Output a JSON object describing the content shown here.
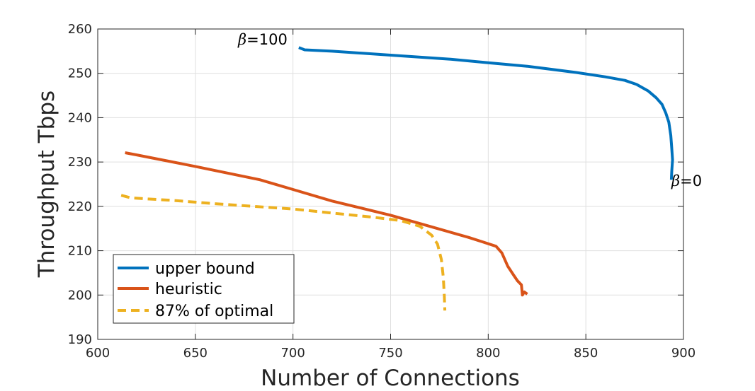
{
  "chart_data": {
    "type": "line",
    "xlabel": "Number of Connections",
    "ylabel": "Throughput Tbps",
    "xlim": [
      600,
      900
    ],
    "ylim": [
      190,
      260
    ],
    "xticks": [
      "600",
      "650",
      "700",
      "750",
      "800",
      "850",
      "900"
    ],
    "yticks": [
      "190",
      "200",
      "210",
      "220",
      "230",
      "240",
      "250",
      "260"
    ],
    "grid": true,
    "legend_position": "bottom-left",
    "series": [
      {
        "name": "upper bound",
        "color": "#0072BD",
        "style": "solid",
        "points": [
          [
            703,
            255.8
          ],
          [
            706,
            255.3
          ],
          [
            720,
            255.0
          ],
          [
            750,
            254.1
          ],
          [
            780,
            253.2
          ],
          [
            800,
            252.4
          ],
          [
            820,
            251.6
          ],
          [
            845,
            250.2
          ],
          [
            860,
            249.2
          ],
          [
            870,
            248.4
          ],
          [
            876,
            247.5
          ],
          [
            882,
            246.0
          ],
          [
            886,
            244.5
          ],
          [
            889,
            243.0
          ],
          [
            891,
            241.0
          ],
          [
            892.5,
            239.0
          ],
          [
            893.5,
            236.0
          ],
          [
            894,
            233.0
          ],
          [
            894.4,
            230.5
          ],
          [
            894,
            228.0
          ],
          [
            893.8,
            226.0
          ]
        ]
      },
      {
        "name": "heuristic",
        "color": "#D95319",
        "style": "solid",
        "points": [
          [
            614,
            232.1
          ],
          [
            620,
            231.6
          ],
          [
            650,
            229.0
          ],
          [
            683,
            226.0
          ],
          [
            700,
            223.8
          ],
          [
            720,
            221.2
          ],
          [
            750,
            218.0
          ],
          [
            770,
            215.5
          ],
          [
            790,
            213.0
          ],
          [
            797,
            212.0
          ],
          [
            804,
            211.0
          ],
          [
            807,
            209.5
          ],
          [
            810,
            206.5
          ],
          [
            813,
            204.5
          ],
          [
            815,
            203.2
          ],
          [
            817,
            202.3
          ],
          [
            817.5,
            200.0
          ],
          [
            818.5,
            200.7
          ],
          [
            820,
            200.2
          ]
        ]
      },
      {
        "name": "87% of optimal",
        "color": "#EDB120",
        "style": "dashed",
        "points": [
          [
            612,
            222.5
          ],
          [
            617,
            221.9
          ],
          [
            640,
            221.3
          ],
          [
            660,
            220.6
          ],
          [
            680,
            220.0
          ],
          [
            700,
            219.4
          ],
          [
            720,
            218.5
          ],
          [
            740,
            217.6
          ],
          [
            755,
            216.8
          ],
          [
            765,
            215.5
          ],
          [
            771,
            213.5
          ],
          [
            774,
            211.5
          ],
          [
            776,
            208.0
          ],
          [
            777,
            204.0
          ],
          [
            777.5,
            200.0
          ],
          [
            777.8,
            196.5
          ]
        ]
      }
    ],
    "annotations": [
      {
        "text": "β=100",
        "x": 700,
        "y": 256
      },
      {
        "text": "β=0",
        "x": 893.5,
        "y": 226
      }
    ]
  }
}
